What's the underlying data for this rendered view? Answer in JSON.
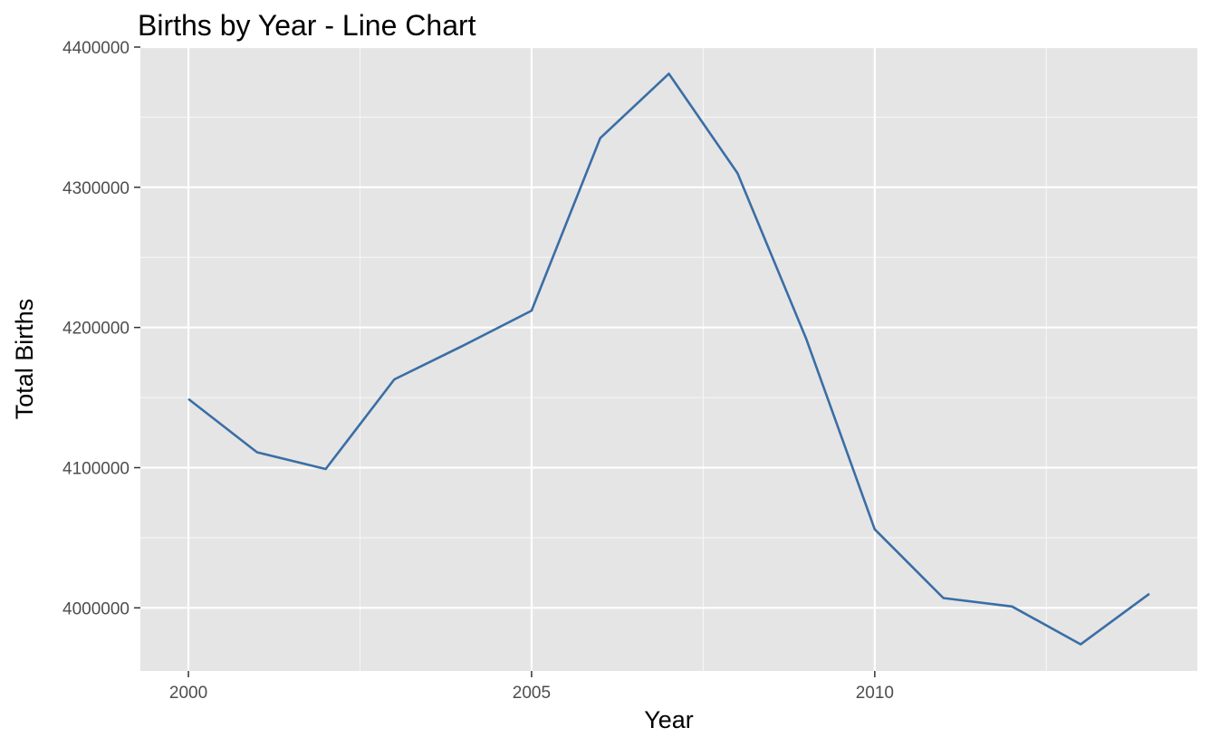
{
  "chart_data": {
    "type": "line",
    "title": "Births by Year - Line Chart",
    "xlabel": "Year",
    "ylabel": "Total Births",
    "x": [
      2000,
      2001,
      2002,
      2003,
      2004,
      2005,
      2006,
      2007,
      2008,
      2009,
      2010,
      2011,
      2012,
      2013,
      2014
    ],
    "series": [
      {
        "values": [
          4149000,
          4111000,
          4099000,
          4163000,
          4187000,
          4212000,
          4335000,
          4381000,
          4310000,
          4192000,
          4056000,
          4007000,
          4001000,
          3974000,
          4010000
        ]
      }
    ],
    "xlim": [
      1999.3,
      2014.7
    ],
    "ylim": [
      3955000,
      4400000
    ],
    "x_ticks": [
      "2000",
      "2005",
      "2010"
    ],
    "y_ticks": [
      "4000000",
      "4100000",
      "4200000",
      "4300000",
      "4400000"
    ],
    "grid": true,
    "panel_color": "#e5e5e5",
    "line_color": "#3a6ea5"
  }
}
